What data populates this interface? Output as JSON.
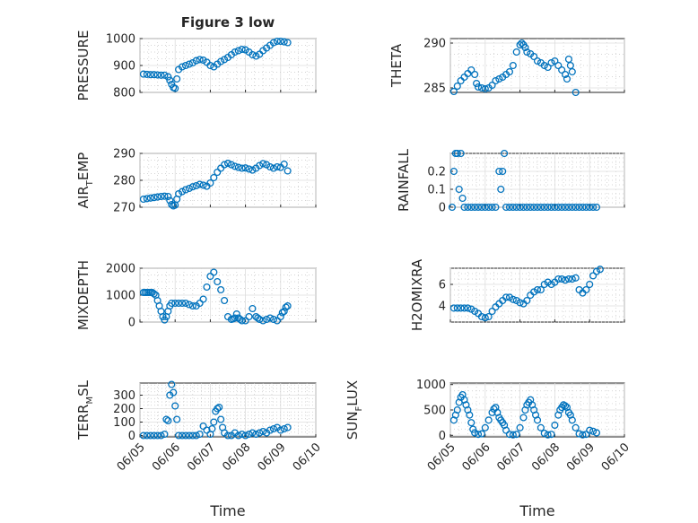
{
  "figure": {
    "title": "Figure 3 low",
    "xlabel": "Time",
    "x_tick_labels": [
      "06/05",
      "06/06",
      "06/07",
      "06/08",
      "06/09",
      "06/10"
    ]
  },
  "chart_data": [
    {
      "type": "scatter",
      "ylabel": "PRESSURE",
      "ylim": [
        800,
        1000
      ],
      "yticks": [
        800,
        900,
        1000
      ],
      "ytick_labels": [
        "800",
        "900",
        "1000"
      ],
      "xlim": [
        5.0,
        10.0
      ],
      "marker_color": "#0072bd",
      "grid": "on (major + minor)",
      "x": [
        5.1,
        5.2,
        5.3,
        5.4,
        5.5,
        5.6,
        5.7,
        5.8,
        5.85,
        5.9,
        5.95,
        6.0,
        6.05,
        6.1,
        6.2,
        6.3,
        6.4,
        6.5,
        6.6,
        6.7,
        6.8,
        6.9,
        7.0,
        7.1,
        7.2,
        7.3,
        7.4,
        7.5,
        7.6,
        7.7,
        7.8,
        7.9,
        8.0,
        8.1,
        8.2,
        8.3,
        8.4,
        8.5,
        8.6,
        8.7,
        8.8,
        8.9,
        9.0,
        9.1,
        9.2
      ],
      "y": [
        868,
        867,
        866,
        866,
        865,
        864,
        864,
        858,
        845,
        830,
        818,
        815,
        850,
        885,
        895,
        900,
        905,
        910,
        918,
        922,
        920,
        912,
        900,
        895,
        905,
        915,
        922,
        930,
        940,
        950,
        955,
        960,
        958,
        950,
        940,
        935,
        942,
        955,
        965,
        975,
        985,
        990,
        990,
        988,
        985
      ]
    },
    {
      "type": "scatter",
      "ylabel": "THETA",
      "ylim": [
        284.5,
        290.5
      ],
      "yticks": [
        285,
        290
      ],
      "ytick_labels": [
        "285",
        "290"
      ],
      "xlim": [
        5.0,
        10.0
      ],
      "marker_color": "#0072bd",
      "grid": "on (major + minor)",
      "x": [
        5.1,
        5.2,
        5.3,
        5.4,
        5.5,
        5.6,
        5.7,
        5.75,
        5.8,
        5.9,
        6.0,
        6.1,
        6.2,
        6.3,
        6.4,
        6.5,
        6.6,
        6.7,
        6.8,
        6.9,
        7.0,
        7.05,
        7.1,
        7.15,
        7.2,
        7.3,
        7.4,
        7.5,
        7.6,
        7.7,
        7.8,
        7.9,
        8.0,
        8.1,
        8.2,
        8.3,
        8.35,
        8.4,
        8.45,
        8.5,
        8.6
      ],
      "y": [
        284.6,
        285.2,
        285.8,
        286.2,
        286.6,
        287.0,
        286.5,
        285.5,
        285.1,
        285.0,
        284.9,
        285.0,
        285.3,
        285.8,
        286.0,
        286.2,
        286.5,
        286.8,
        287.5,
        289.0,
        289.8,
        290.0,
        289.8,
        289.5,
        289.0,
        288.8,
        288.5,
        288.0,
        287.8,
        287.5,
        287.3,
        287.8,
        288.0,
        287.5,
        287.0,
        286.5,
        286.0,
        288.2,
        287.5,
        286.8,
        284.5
      ]
    },
    {
      "type": "scatter",
      "ylabel": "AIR_TEMP",
      "ylim": [
        270,
        290
      ],
      "yticks": [
        270,
        280,
        290
      ],
      "ytick_labels": [
        "270",
        "280",
        "290"
      ],
      "xlim": [
        5.0,
        10.0
      ],
      "marker_color": "#0072bd",
      "grid": "on (major + minor)",
      "x": [
        5.1,
        5.2,
        5.3,
        5.4,
        5.5,
        5.6,
        5.7,
        5.8,
        5.85,
        5.9,
        5.95,
        6.0,
        6.05,
        6.1,
        6.2,
        6.3,
        6.4,
        6.5,
        6.6,
        6.7,
        6.8,
        6.9,
        7.0,
        7.1,
        7.2,
        7.3,
        7.4,
        7.5,
        7.6,
        7.7,
        7.8,
        7.9,
        8.0,
        8.1,
        8.2,
        8.3,
        8.4,
        8.5,
        8.6,
        8.7,
        8.8,
        8.9,
        9.0,
        9.1,
        9.2
      ],
      "y": [
        273.0,
        273.2,
        273.4,
        273.6,
        273.8,
        274.0,
        274.1,
        274.0,
        272.5,
        271.0,
        270.5,
        270.8,
        273.0,
        275.0,
        275.8,
        276.5,
        277.0,
        277.6,
        278.0,
        278.5,
        278.2,
        277.8,
        279.0,
        281.0,
        283.0,
        284.5,
        285.8,
        286.3,
        285.8,
        285.2,
        284.8,
        284.5,
        284.6,
        284.2,
        283.8,
        284.5,
        285.5,
        286.2,
        285.8,
        285.0,
        284.5,
        285.0,
        284.8,
        286.0,
        283.5
      ]
    },
    {
      "type": "scatter",
      "ylabel": "RAINFALL",
      "ylim": [
        0,
        0.3
      ],
      "yticks": [
        0,
        0.1,
        0.2
      ],
      "ytick_labels": [
        "0",
        "0.1",
        "0.2"
      ],
      "xlim": [
        5.0,
        10.0
      ],
      "marker_color": "#0072bd",
      "grid": "on (major + minor)",
      "x": [
        5.05,
        5.1,
        5.15,
        5.2,
        5.25,
        5.3,
        5.35,
        5.4,
        5.5,
        5.6,
        5.7,
        5.8,
        5.9,
        6.0,
        6.1,
        6.2,
        6.3,
        6.4,
        6.45,
        6.5,
        6.55,
        6.6,
        6.7,
        6.8,
        6.9,
        7.0,
        7.1,
        7.2,
        7.3,
        7.4,
        7.5,
        7.6,
        7.7,
        7.8,
        7.9,
        8.0,
        8.1,
        8.2,
        8.3,
        8.4,
        8.5,
        8.6,
        8.7,
        8.8,
        8.9,
        9.0,
        9.1,
        9.2
      ],
      "y": [
        0,
        0.2,
        0.3,
        0.3,
        0.1,
        0.3,
        0.05,
        0,
        0,
        0,
        0,
        0,
        0,
        0,
        0,
        0,
        0,
        0.2,
        0.1,
        0.2,
        0.3,
        0,
        0,
        0,
        0,
        0,
        0,
        0,
        0,
        0,
        0,
        0,
        0,
        0,
        0,
        0,
        0,
        0,
        0,
        0,
        0,
        0,
        0,
        0,
        0,
        0,
        0,
        0
      ]
    },
    {
      "type": "scatter",
      "ylabel": "MIXDEPTH",
      "ylim": [
        0,
        2000
      ],
      "yticks": [
        0,
        1000,
        2000
      ],
      "ytick_labels": [
        "0",
        "1000",
        "2000"
      ],
      "xlim": [
        5.0,
        10.0
      ],
      "marker_color": "#0072bd",
      "grid": "on (major + minor)",
      "x": [
        5.1,
        5.15,
        5.2,
        5.25,
        5.3,
        5.35,
        5.4,
        5.45,
        5.5,
        5.55,
        5.6,
        5.65,
        5.7,
        5.75,
        5.8,
        5.85,
        5.9,
        6.0,
        6.1,
        6.2,
        6.3,
        6.4,
        6.5,
        6.6,
        6.7,
        6.8,
        6.9,
        7.0,
        7.1,
        7.2,
        7.3,
        7.4,
        7.5,
        7.6,
        7.65,
        7.7,
        7.75,
        7.8,
        7.85,
        7.9,
        8.0,
        8.1,
        8.2,
        8.3,
        8.35,
        8.4,
        8.5,
        8.6,
        8.7,
        8.8,
        8.9,
        9.0,
        9.05,
        9.1,
        9.15,
        9.2
      ],
      "y": [
        1100,
        1100,
        1100,
        1100,
        1100,
        1100,
        1050,
        1000,
        800,
        600,
        400,
        200,
        80,
        200,
        400,
        600,
        700,
        700,
        700,
        700,
        700,
        650,
        600,
        600,
        700,
        850,
        1300,
        1700,
        1850,
        1500,
        1200,
        800,
        200,
        100,
        120,
        150,
        300,
        150,
        100,
        50,
        50,
        200,
        500,
        200,
        150,
        100,
        50,
        100,
        150,
        100,
        50,
        200,
        350,
        400,
        550,
        600
      ]
    },
    {
      "type": "scatter",
      "ylabel": "H2OMIXRA",
      "ylim": [
        2.5,
        7.5
      ],
      "yticks": [
        4,
        6
      ],
      "ytick_labels": [
        "4",
        "6"
      ],
      "xlim": [
        5.0,
        10.0
      ],
      "marker_color": "#0072bd",
      "grid": "on (major + minor)",
      "x": [
        5.1,
        5.2,
        5.3,
        5.4,
        5.5,
        5.6,
        5.7,
        5.8,
        5.9,
        6.0,
        6.1,
        6.2,
        6.3,
        6.4,
        6.5,
        6.6,
        6.7,
        6.8,
        6.9,
        7.0,
        7.1,
        7.2,
        7.3,
        7.4,
        7.5,
        7.6,
        7.7,
        7.8,
        7.9,
        8.0,
        8.1,
        8.2,
        8.3,
        8.4,
        8.5,
        8.6,
        8.7,
        8.8,
        8.9,
        9.0,
        9.1,
        9.2,
        9.3
      ],
      "y": [
        3.8,
        3.8,
        3.8,
        3.8,
        3.8,
        3.7,
        3.5,
        3.3,
        3.0,
        2.9,
        3.0,
        3.5,
        3.9,
        4.2,
        4.5,
        4.8,
        4.8,
        4.6,
        4.5,
        4.3,
        4.2,
        4.5,
        5.0,
        5.3,
        5.5,
        5.5,
        6.0,
        6.2,
        6.0,
        6.2,
        6.5,
        6.5,
        6.4,
        6.5,
        6.5,
        6.6,
        5.5,
        5.2,
        5.5,
        6.0,
        6.8,
        7.2,
        7.4
      ]
    },
    {
      "type": "scatter",
      "ylabel": "TERR_MSL",
      "ylim": [
        -10,
        390
      ],
      "yticks": [
        0,
        100,
        200,
        300
      ],
      "ytick_labels": [
        "0",
        "100",
        "200",
        "300"
      ],
      "xlim": [
        5.0,
        10.0
      ],
      "marker_color": "#0072bd",
      "grid": "on (major + minor)",
      "x": [
        5.1,
        5.2,
        5.3,
        5.4,
        5.5,
        5.6,
        5.7,
        5.75,
        5.8,
        5.85,
        5.9,
        5.95,
        6.0,
        6.05,
        6.1,
        6.2,
        6.3,
        6.4,
        6.5,
        6.6,
        6.7,
        6.8,
        6.9,
        7.0,
        7.05,
        7.1,
        7.15,
        7.2,
        7.25,
        7.3,
        7.35,
        7.4,
        7.5,
        7.6,
        7.7,
        7.8,
        7.9,
        8.0,
        8.1,
        8.2,
        8.3,
        8.4,
        8.5,
        8.6,
        8.7,
        8.8,
        8.9,
        9.0,
        9.1,
        9.2
      ],
      "y": [
        0,
        0,
        0,
        0,
        0,
        0,
        10,
        120,
        110,
        300,
        380,
        320,
        220,
        120,
        0,
        0,
        0,
        0,
        0,
        0,
        10,
        70,
        40,
        10,
        50,
        100,
        180,
        200,
        210,
        120,
        60,
        20,
        0,
        0,
        20,
        0,
        10,
        0,
        10,
        20,
        10,
        20,
        30,
        20,
        40,
        50,
        60,
        40,
        50,
        60
      ]
    },
    {
      "type": "scatter",
      "ylabel": "SUN_FLUX",
      "ylim": [
        -30,
        1030
      ],
      "yticks": [
        0,
        500,
        1000
      ],
      "ytick_labels": [
        "0",
        "500",
        "1000"
      ],
      "xlim": [
        5.0,
        10.0
      ],
      "marker_color": "#0072bd",
      "grid": "on (major + minor)",
      "x": [
        5.1,
        5.15,
        5.2,
        5.25,
        5.3,
        5.35,
        5.4,
        5.45,
        5.5,
        5.55,
        5.6,
        5.65,
        5.7,
        5.8,
        5.9,
        6.0,
        6.1,
        6.2,
        6.25,
        6.3,
        6.35,
        6.4,
        6.45,
        6.5,
        6.55,
        6.6,
        6.7,
        6.8,
        6.9,
        7.0,
        7.1,
        7.15,
        7.2,
        7.25,
        7.3,
        7.35,
        7.4,
        7.45,
        7.5,
        7.6,
        7.7,
        7.8,
        7.9,
        8.0,
        8.1,
        8.15,
        8.2,
        8.25,
        8.3,
        8.35,
        8.4,
        8.45,
        8.5,
        8.6,
        8.7,
        8.8,
        8.9,
        9.0,
        9.1,
        9.2
      ],
      "y": [
        300,
        400,
        500,
        650,
        750,
        800,
        700,
        600,
        500,
        400,
        250,
        120,
        50,
        20,
        30,
        150,
        300,
        450,
        520,
        550,
        450,
        350,
        300,
        250,
        200,
        100,
        20,
        10,
        20,
        150,
        350,
        500,
        600,
        650,
        700,
        600,
        500,
        400,
        300,
        150,
        40,
        10,
        20,
        200,
        400,
        500,
        550,
        600,
        580,
        550,
        450,
        400,
        300,
        150,
        30,
        10,
        20,
        100,
        80,
        50
      ]
    }
  ]
}
